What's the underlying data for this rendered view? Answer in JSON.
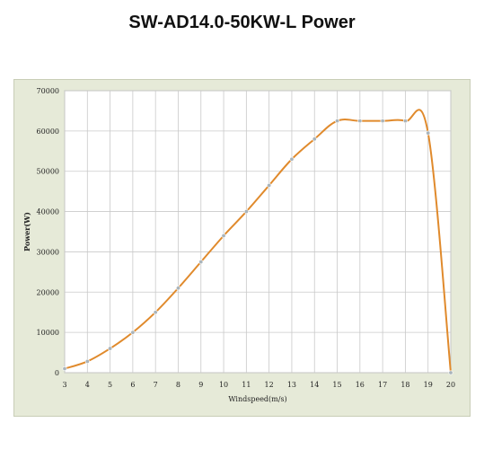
{
  "title": "SW-AD14.0-50KW-L Power",
  "colors": {
    "plot_background": "#ffffff",
    "frame_background": "#e6ead8",
    "gridline": "#c9c9c9",
    "curve": "#e08a2c",
    "marker": "#a9b4bb"
  },
  "chart_data": {
    "type": "line",
    "title": "SW-AD14.0-50KW-L Power",
    "xlabel": "Windspeed(m/s)",
    "ylabel": "Power(W)",
    "xlim": [
      3,
      20
    ],
    "ylim": [
      0,
      70000
    ],
    "x_ticks": [
      3,
      4,
      5,
      6,
      7,
      8,
      9,
      10,
      11,
      12,
      13,
      14,
      15,
      16,
      17,
      18,
      19,
      20
    ],
    "y_ticks": [
      0,
      10000,
      20000,
      30000,
      40000,
      50000,
      60000,
      70000
    ],
    "grid": true,
    "legend": "none",
    "series": [
      {
        "x": [
          3,
          4,
          5,
          6,
          7,
          8,
          9,
          10,
          11,
          12,
          13,
          14,
          15,
          16,
          17,
          18,
          19,
          20
        ],
        "y": [
          1000,
          2800,
          6000,
          10000,
          15000,
          21000,
          27500,
          34000,
          40000,
          46500,
          53000,
          58000,
          62500,
          62500,
          62500,
          62500,
          59500,
          0
        ]
      }
    ]
  }
}
